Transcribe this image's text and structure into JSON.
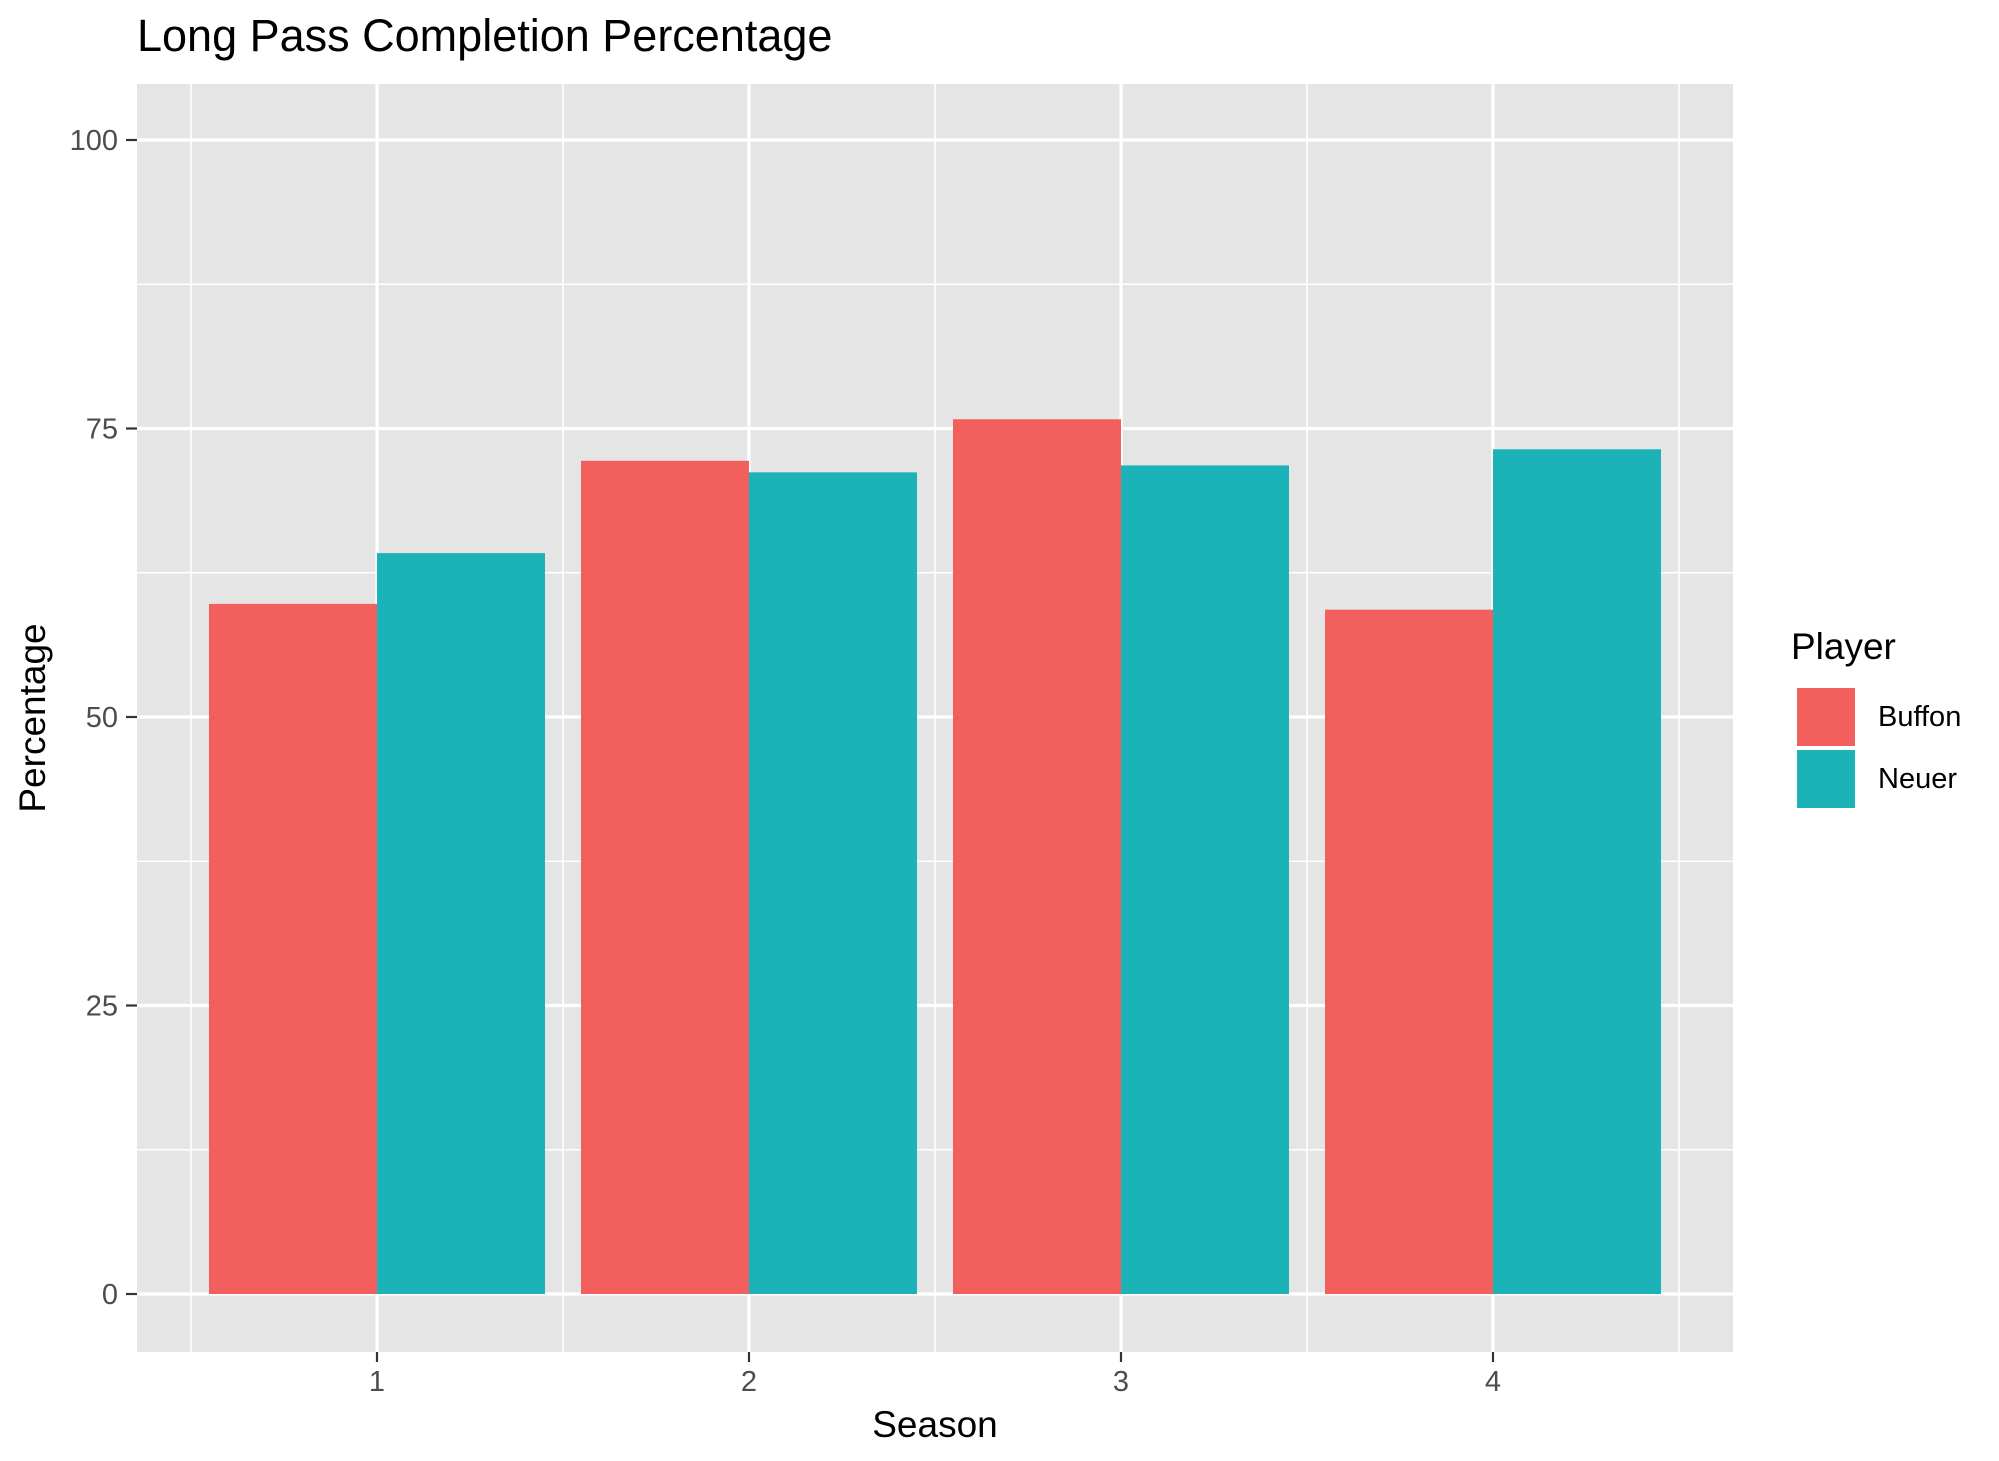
{
  "chart_data": {
    "type": "bar",
    "title": "Long Pass Completion Percentage",
    "xlabel": "Season",
    "ylabel": "Percentage",
    "categories": [
      "1",
      "2",
      "3",
      "4"
    ],
    "series": [
      {
        "name": "Buffon",
        "values": [
          59.8,
          72.2,
          75.8,
          59.3
        ],
        "color": "#F25F5C"
      },
      {
        "name": "Neuer",
        "values": [
          64.2,
          71.2,
          71.8,
          73.2
        ],
        "color": "#1BB3B7"
      }
    ],
    "ylim": [
      0,
      100
    ],
    "yticks": [
      "0",
      "25",
      "50",
      "75",
      "100"
    ],
    "legend": {
      "title": "Player",
      "position": "right"
    },
    "grid": true,
    "colors": {
      "panel_background": "#E5E5E5",
      "grid": "#FFFFFF",
      "tick_text": "#4D4D4D"
    }
  }
}
